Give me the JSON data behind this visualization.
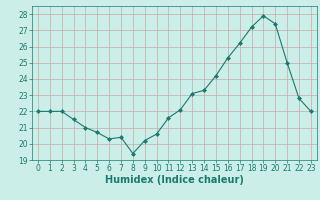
{
  "x": [
    0,
    1,
    2,
    3,
    4,
    5,
    6,
    7,
    8,
    9,
    10,
    11,
    12,
    13,
    14,
    15,
    16,
    17,
    18,
    19,
    20,
    21,
    22,
    23
  ],
  "y": [
    22.0,
    22.0,
    22.0,
    21.5,
    21.0,
    20.7,
    20.3,
    20.4,
    19.4,
    20.2,
    20.6,
    21.6,
    22.1,
    23.1,
    23.3,
    24.2,
    25.3,
    26.2,
    27.2,
    27.9,
    27.4,
    25.0,
    22.8,
    22.0
  ],
  "line_color": "#1a7a6e",
  "marker": "D",
  "marker_size": 2,
  "bg_color": "#cceee8",
  "grid_color": "#c8a8a8",
  "xlabel": "Humidex (Indice chaleur)",
  "xlim": [
    -0.5,
    23.5
  ],
  "ylim": [
    19,
    28.5
  ],
  "yticks": [
    19,
    20,
    21,
    22,
    23,
    24,
    25,
    26,
    27,
    28
  ],
  "xticks": [
    0,
    1,
    2,
    3,
    4,
    5,
    6,
    7,
    8,
    9,
    10,
    11,
    12,
    13,
    14,
    15,
    16,
    17,
    18,
    19,
    20,
    21,
    22,
    23
  ],
  "tick_label_fontsize": 5.5,
  "xlabel_fontsize": 7.0,
  "axis_color": "#1a7a6e"
}
